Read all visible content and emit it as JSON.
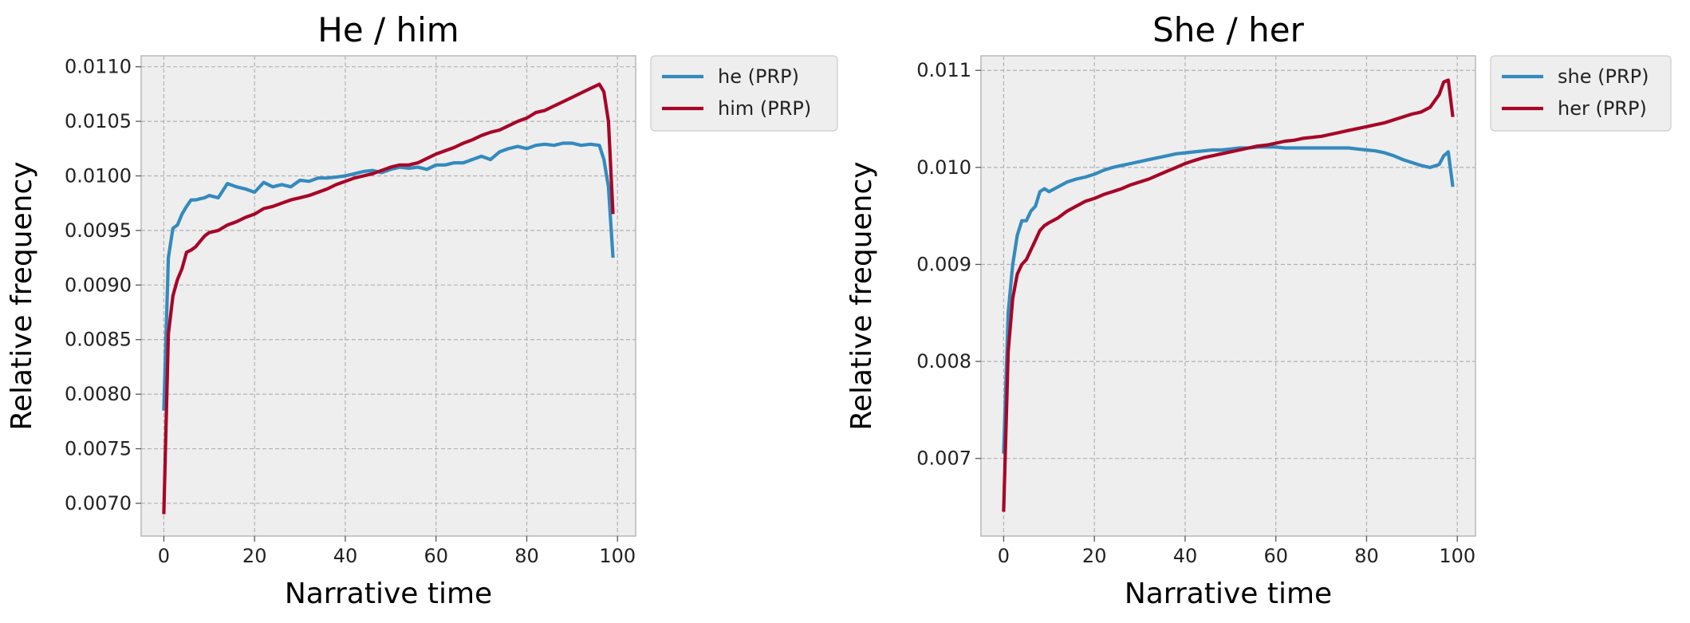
{
  "chart_data": [
    {
      "type": "line",
      "title": "He / him",
      "xlabel": "Narrative time",
      "ylabel": "Relative frequency",
      "xlim": [
        -5,
        104
      ],
      "ylim": [
        0.0067,
        0.0111
      ],
      "xticks": [
        0,
        20,
        40,
        60,
        80,
        100
      ],
      "xtick_labels": [
        "0",
        "20",
        "40",
        "60",
        "80",
        "100"
      ],
      "yticks": [
        0.007,
        0.0075,
        0.008,
        0.0085,
        0.009,
        0.0095,
        0.01,
        0.0105,
        0.011
      ],
      "ytick_labels": [
        "0.0070",
        "0.0075",
        "0.0080",
        "0.0085",
        "0.0090",
        "0.0095",
        "0.0100",
        "0.0105",
        "0.0110"
      ],
      "grid": true,
      "legend_position": "outside-top-right",
      "series": [
        {
          "name": "he (PRP)",
          "color": "#348abd",
          "x": [
            0,
            1,
            2,
            3,
            4,
            5,
            6,
            7,
            8,
            9,
            10,
            12,
            14,
            16,
            18,
            20,
            22,
            24,
            26,
            28,
            30,
            32,
            34,
            36,
            38,
            40,
            42,
            44,
            46,
            48,
            50,
            52,
            54,
            56,
            58,
            60,
            62,
            64,
            66,
            68,
            70,
            72,
            74,
            76,
            78,
            80,
            82,
            84,
            86,
            88,
            90,
            92,
            94,
            96,
            97,
            98,
            99
          ],
          "y": [
            0.00785,
            0.00925,
            0.00952,
            0.00955,
            0.00965,
            0.00972,
            0.00978,
            0.00978,
            0.00979,
            0.0098,
            0.00982,
            0.0098,
            0.00993,
            0.0099,
            0.00988,
            0.00985,
            0.00994,
            0.0099,
            0.00992,
            0.0099,
            0.00996,
            0.00995,
            0.00998,
            0.00998,
            0.00999,
            0.01,
            0.01002,
            0.01004,
            0.01005,
            0.01003,
            0.01006,
            0.01008,
            0.01007,
            0.01008,
            0.01006,
            0.0101,
            0.0101,
            0.01012,
            0.01012,
            0.01015,
            0.01018,
            0.01015,
            0.01022,
            0.01025,
            0.01027,
            0.01025,
            0.01028,
            0.01029,
            0.01028,
            0.0103,
            0.0103,
            0.01028,
            0.01029,
            0.01028,
            0.01015,
            0.0099,
            0.00925
          ]
        },
        {
          "name": "him (PRP)",
          "color": "#a60628",
          "x": [
            0,
            1,
            2,
            3,
            4,
            5,
            6,
            7,
            8,
            9,
            10,
            12,
            14,
            16,
            18,
            20,
            22,
            24,
            26,
            28,
            30,
            32,
            34,
            36,
            38,
            40,
            42,
            44,
            46,
            48,
            50,
            52,
            54,
            56,
            58,
            60,
            62,
            64,
            66,
            68,
            70,
            72,
            74,
            76,
            78,
            80,
            82,
            84,
            86,
            88,
            90,
            92,
            94,
            96,
            97,
            98,
            99
          ],
          "y": [
            0.0069,
            0.00855,
            0.0089,
            0.00905,
            0.00915,
            0.0093,
            0.00932,
            0.00935,
            0.0094,
            0.00945,
            0.00948,
            0.0095,
            0.00955,
            0.00958,
            0.00962,
            0.00965,
            0.0097,
            0.00972,
            0.00975,
            0.00978,
            0.0098,
            0.00982,
            0.00985,
            0.00988,
            0.00992,
            0.00995,
            0.00998,
            0.01,
            0.01002,
            0.01005,
            0.01008,
            0.0101,
            0.0101,
            0.01012,
            0.01016,
            0.0102,
            0.01023,
            0.01026,
            0.0103,
            0.01033,
            0.01037,
            0.0104,
            0.01042,
            0.01046,
            0.0105,
            0.01053,
            0.01058,
            0.0106,
            0.01064,
            0.01068,
            0.01072,
            0.01076,
            0.0108,
            0.01084,
            0.01077,
            0.0105,
            0.00965
          ]
        }
      ]
    },
    {
      "type": "line",
      "title": "She / her",
      "xlabel": "Narrative time",
      "ylabel": "Relative frequency",
      "xlim": [
        -5,
        104
      ],
      "ylim": [
        0.0062,
        0.01115
      ],
      "xticks": [
        0,
        20,
        40,
        60,
        80,
        100
      ],
      "xtick_labels": [
        "0",
        "20",
        "40",
        "60",
        "80",
        "100"
      ],
      "yticks": [
        0.007,
        0.008,
        0.009,
        0.01,
        0.011
      ],
      "ytick_labels": [
        "0.007",
        "0.008",
        "0.009",
        "0.010",
        "0.011"
      ],
      "grid": true,
      "legend_position": "outside-top-right",
      "series": [
        {
          "name": "she (PRP)",
          "color": "#348abd",
          "x": [
            0,
            1,
            2,
            3,
            4,
            5,
            6,
            7,
            8,
            9,
            10,
            12,
            14,
            16,
            18,
            20,
            22,
            24,
            26,
            28,
            30,
            32,
            34,
            36,
            38,
            40,
            42,
            44,
            46,
            48,
            50,
            52,
            54,
            56,
            58,
            60,
            62,
            64,
            66,
            68,
            70,
            72,
            74,
            76,
            78,
            80,
            82,
            84,
            86,
            88,
            90,
            92,
            94,
            96,
            97,
            98,
            99
          ],
          "y": [
            0.00705,
            0.0085,
            0.009,
            0.0093,
            0.00945,
            0.00945,
            0.00955,
            0.0096,
            0.00975,
            0.00978,
            0.00975,
            0.0098,
            0.00985,
            0.00988,
            0.0099,
            0.00993,
            0.00997,
            0.01,
            0.01002,
            0.01004,
            0.01006,
            0.01008,
            0.0101,
            0.01012,
            0.01014,
            0.01015,
            0.01016,
            0.01017,
            0.01018,
            0.01018,
            0.01019,
            0.0102,
            0.0102,
            0.01021,
            0.01021,
            0.01021,
            0.0102,
            0.0102,
            0.0102,
            0.0102,
            0.0102,
            0.0102,
            0.0102,
            0.0102,
            0.01019,
            0.01018,
            0.01017,
            0.01015,
            0.01012,
            0.01008,
            0.01005,
            0.01002,
            0.01,
            0.01003,
            0.01012,
            0.01016,
            0.0098
          ]
        },
        {
          "name": "her (PRP)",
          "color": "#a60628",
          "x": [
            0,
            1,
            2,
            3,
            4,
            5,
            6,
            7,
            8,
            9,
            10,
            12,
            14,
            16,
            18,
            20,
            22,
            24,
            26,
            28,
            30,
            32,
            34,
            36,
            38,
            40,
            42,
            44,
            46,
            48,
            50,
            52,
            54,
            56,
            58,
            60,
            62,
            64,
            66,
            68,
            70,
            72,
            74,
            76,
            78,
            80,
            82,
            84,
            86,
            88,
            90,
            92,
            94,
            96,
            97,
            98,
            99
          ],
          "y": [
            0.00645,
            0.0081,
            0.00865,
            0.0089,
            0.009,
            0.00905,
            0.00915,
            0.00925,
            0.00935,
            0.0094,
            0.00943,
            0.00948,
            0.00955,
            0.0096,
            0.00965,
            0.00968,
            0.00972,
            0.00975,
            0.00978,
            0.00982,
            0.00985,
            0.00988,
            0.00992,
            0.00996,
            0.01,
            0.01004,
            0.01007,
            0.0101,
            0.01012,
            0.01014,
            0.01016,
            0.01018,
            0.0102,
            0.01022,
            0.01023,
            0.01025,
            0.01027,
            0.01028,
            0.0103,
            0.01031,
            0.01032,
            0.01034,
            0.01036,
            0.01038,
            0.0104,
            0.01042,
            0.01044,
            0.01046,
            0.01049,
            0.01052,
            0.01055,
            0.01057,
            0.01062,
            0.01075,
            0.01088,
            0.0109,
            0.01052
          ]
        }
      ]
    }
  ]
}
